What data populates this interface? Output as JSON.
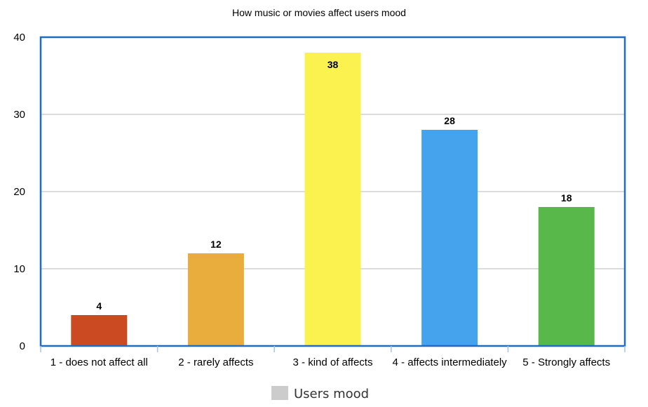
{
  "chart_data": {
    "type": "bar",
    "title": "How music or movies affect users mood",
    "categories": [
      "1 - does not affect all",
      "2 - rarely affects",
      "3 - kind of affects",
      "4 - affects intermediately",
      "5 - Strongly affects"
    ],
    "series": [
      {
        "name": "Users mood",
        "values": [
          4,
          12,
          38,
          28,
          18
        ]
      }
    ],
    "bar_colors": [
      "#cc4a22",
      "#e9ad3e",
      "#fbf24f",
      "#44a3ec",
      "#58b84a"
    ],
    "ylim": [
      0,
      40
    ],
    "yticks": [
      0,
      10,
      20,
      30,
      40
    ],
    "xlabel": "",
    "ylabel": "",
    "grid": true,
    "legend": {
      "placement": "bottom",
      "swatch_color": "#cccccc"
    },
    "frame_color": "#1f6dbf",
    "grid_color": "#b8b8b8"
  }
}
